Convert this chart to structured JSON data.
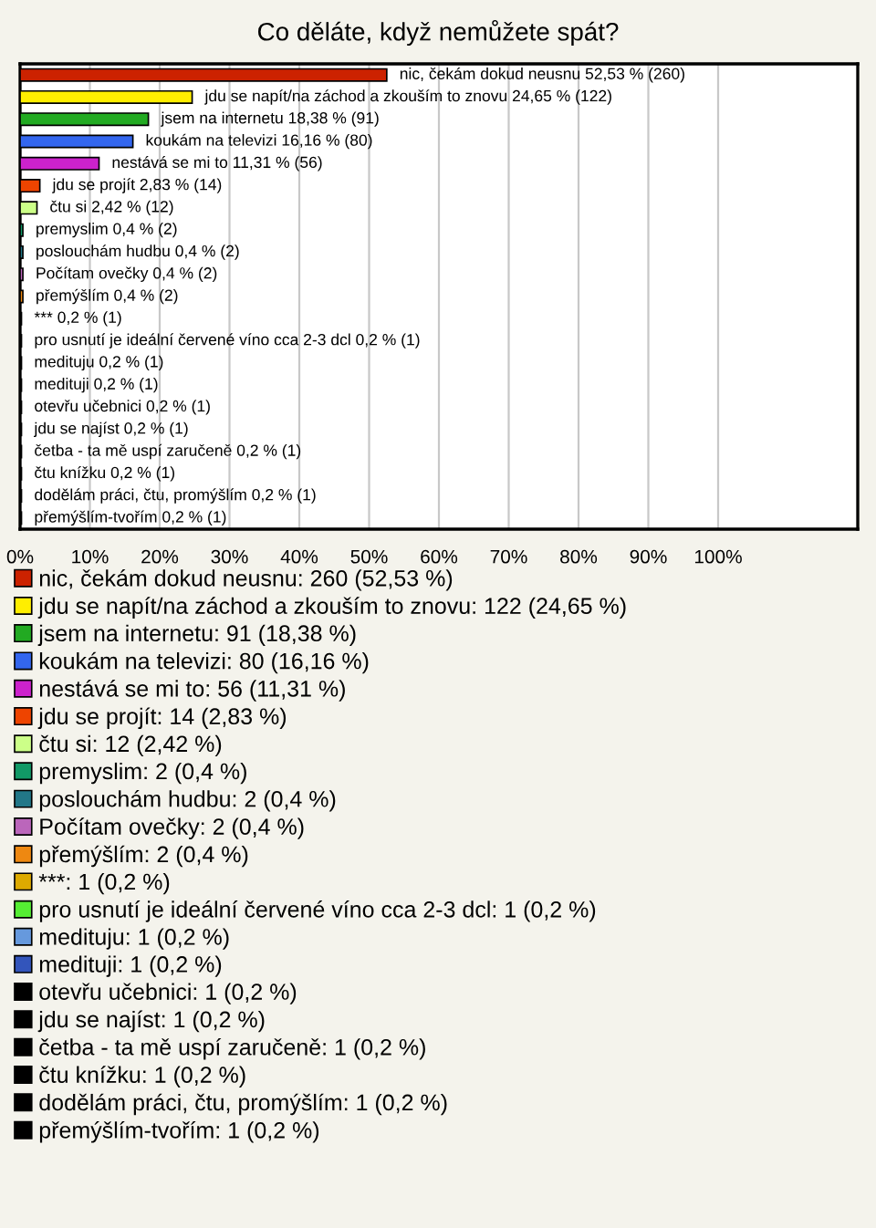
{
  "chart_data": {
    "type": "bar",
    "orientation": "horizontal",
    "title": "Co děláte, když nemůžete spát?",
    "categories": [
      null,
      null,
      null,
      null,
      null,
      null,
      null,
      null,
      null,
      null,
      null,
      null,
      null,
      null,
      null,
      null,
      null,
      null,
      null,
      null,
      null
    ],
    "xlim": [
      0,
      120
    ],
    "xticks": [
      {
        "value": 0,
        "label": "0%"
      },
      {
        "value": 10,
        "label": "10%"
      },
      {
        "value": 20,
        "label": "20%"
      },
      {
        "value": 30,
        "label": "30%"
      },
      {
        "value": 40,
        "label": "40%"
      },
      {
        "value": 50,
        "label": "50%"
      },
      {
        "value": 60,
        "label": "60%"
      },
      {
        "value": 70,
        "label": "70%"
      },
      {
        "value": 80,
        "label": "80%"
      },
      {
        "value": 90,
        "label": "90%"
      },
      {
        "value": 100,
        "label": "100%"
      }
    ],
    "grid": "x",
    "legend": "bottom",
    "series": [
      {
        "name": "nic, čekám dokud neusnu: 260 (52,53 %)",
        "color": "#cc2200",
        "values": [
          52.53,
          null,
          null,
          null,
          null,
          null,
          null,
          null,
          null,
          null,
          null,
          null,
          null,
          null,
          null,
          null,
          null,
          null,
          null,
          null,
          null
        ],
        "value_labels": [
          "nic, čekám dokud neusnu 52,53 % (260)",
          null,
          null,
          null,
          null,
          null,
          null,
          null,
          null,
          null,
          null,
          null,
          null,
          null,
          null,
          null,
          null,
          null,
          null,
          null,
          null
        ]
      },
      {
        "name": "jdu se napít/na záchod a zkouším to znovu: 122 (24,65 %)",
        "color": "#ffee00",
        "values": [
          null,
          24.65,
          null,
          null,
          null,
          null,
          null,
          null,
          null,
          null,
          null,
          null,
          null,
          null,
          null,
          null,
          null,
          null,
          null,
          null,
          null
        ],
        "value_labels": [
          null,
          "jdu se napít/na záchod a zkouším to znovu 24,65 % (122)",
          null,
          null,
          null,
          null,
          null,
          null,
          null,
          null,
          null,
          null,
          null,
          null,
          null,
          null,
          null,
          null,
          null,
          null,
          null
        ]
      },
      {
        "name": "jsem na internetu: 91 (18,38 %)",
        "color": "#22aa22",
        "values": [
          null,
          null,
          18.38,
          null,
          null,
          null,
          null,
          null,
          null,
          null,
          null,
          null,
          null,
          null,
          null,
          null,
          null,
          null,
          null,
          null,
          null
        ],
        "value_labels": [
          null,
          null,
          "jsem na internetu 18,38 % (91)",
          null,
          null,
          null,
          null,
          null,
          null,
          null,
          null,
          null,
          null,
          null,
          null,
          null,
          null,
          null,
          null,
          null,
          null
        ]
      },
      {
        "name": "koukám na televizi: 80 (16,16 %)",
        "color": "#3366ee",
        "values": [
          null,
          null,
          null,
          16.16,
          null,
          null,
          null,
          null,
          null,
          null,
          null,
          null,
          null,
          null,
          null,
          null,
          null,
          null,
          null,
          null,
          null
        ],
        "value_labels": [
          null,
          null,
          null,
          "koukám na televizi 16,16 % (80)",
          null,
          null,
          null,
          null,
          null,
          null,
          null,
          null,
          null,
          null,
          null,
          null,
          null,
          null,
          null,
          null,
          null
        ]
      },
      {
        "name": "nestává se mi to: 56 (11,31 %)",
        "color": "#cc22cc",
        "values": [
          null,
          null,
          null,
          null,
          11.31,
          null,
          null,
          null,
          null,
          null,
          null,
          null,
          null,
          null,
          null,
          null,
          null,
          null,
          null,
          null,
          null
        ],
        "value_labels": [
          null,
          null,
          null,
          null,
          "nestává se mi to 11,31 % (56)",
          null,
          null,
          null,
          null,
          null,
          null,
          null,
          null,
          null,
          null,
          null,
          null,
          null,
          null,
          null,
          null
        ]
      },
      {
        "name": "jdu se projít: 14 (2,83 %)",
        "color": "#ee4400",
        "values": [
          null,
          null,
          null,
          null,
          null,
          2.83,
          null,
          null,
          null,
          null,
          null,
          null,
          null,
          null,
          null,
          null,
          null,
          null,
          null,
          null,
          null
        ],
        "value_labels": [
          null,
          null,
          null,
          null,
          null,
          "jdu se projít 2,83 % (14)",
          null,
          null,
          null,
          null,
          null,
          null,
          null,
          null,
          null,
          null,
          null,
          null,
          null,
          null,
          null
        ]
      },
      {
        "name": "čtu si: 12 (2,42 %)",
        "color": "#ccff88",
        "values": [
          null,
          null,
          null,
          null,
          null,
          null,
          2.42,
          null,
          null,
          null,
          null,
          null,
          null,
          null,
          null,
          null,
          null,
          null,
          null,
          null,
          null
        ],
        "value_labels": [
          null,
          null,
          null,
          null,
          null,
          null,
          "čtu si 2,42 % (12)",
          null,
          null,
          null,
          null,
          null,
          null,
          null,
          null,
          null,
          null,
          null,
          null,
          null,
          null
        ]
      },
      {
        "name": "premyslim: 2 (0,4 %)",
        "color": "#119966",
        "values": [
          null,
          null,
          null,
          null,
          null,
          null,
          null,
          0.4,
          null,
          null,
          null,
          null,
          null,
          null,
          null,
          null,
          null,
          null,
          null,
          null,
          null
        ],
        "value_labels": [
          null,
          null,
          null,
          null,
          null,
          null,
          null,
          "premyslim 0,4 % (2)",
          null,
          null,
          null,
          null,
          null,
          null,
          null,
          null,
          null,
          null,
          null,
          null,
          null
        ]
      },
      {
        "name": "poslouchám hudbu: 2 (0,4 %)",
        "color": "#227788",
        "values": [
          null,
          null,
          null,
          null,
          null,
          null,
          null,
          null,
          0.4,
          null,
          null,
          null,
          null,
          null,
          null,
          null,
          null,
          null,
          null,
          null,
          null
        ],
        "value_labels": [
          null,
          null,
          null,
          null,
          null,
          null,
          null,
          null,
          "poslouchám hudbu 0,4 % (2)",
          null,
          null,
          null,
          null,
          null,
          null,
          null,
          null,
          null,
          null,
          null,
          null
        ]
      },
      {
        "name": "Počítam ovečky: 2 (0,4 %)",
        "color": "#bb66bb",
        "values": [
          null,
          null,
          null,
          null,
          null,
          null,
          null,
          null,
          null,
          0.4,
          null,
          null,
          null,
          null,
          null,
          null,
          null,
          null,
          null,
          null,
          null
        ],
        "value_labels": [
          null,
          null,
          null,
          null,
          null,
          null,
          null,
          null,
          null,
          "Počítam ovečky 0,4 % (2)",
          null,
          null,
          null,
          null,
          null,
          null,
          null,
          null,
          null,
          null,
          null
        ]
      },
      {
        "name": "přemýšlím: 2 (0,4 %)",
        "color": "#ee8811",
        "values": [
          null,
          null,
          null,
          null,
          null,
          null,
          null,
          null,
          null,
          null,
          0.4,
          null,
          null,
          null,
          null,
          null,
          null,
          null,
          null,
          null,
          null
        ],
        "value_labels": [
          null,
          null,
          null,
          null,
          null,
          null,
          null,
          null,
          null,
          null,
          "přemýšlím 0,4 % (2)",
          null,
          null,
          null,
          null,
          null,
          null,
          null,
          null,
          null,
          null
        ]
      },
      {
        "name": "***: 1 (0,2 %)",
        "color": "#ddaa00",
        "values": [
          null,
          null,
          null,
          null,
          null,
          null,
          null,
          null,
          null,
          null,
          null,
          0.2,
          null,
          null,
          null,
          null,
          null,
          null,
          null,
          null,
          null
        ],
        "value_labels": [
          null,
          null,
          null,
          null,
          null,
          null,
          null,
          null,
          null,
          null,
          null,
          "*** 0,2 % (1)",
          null,
          null,
          null,
          null,
          null,
          null,
          null,
          null,
          null
        ]
      },
      {
        "name": "pro usnutí je ideální červené víno cca 2-3 dcl: 1 (0,2 %)",
        "color": "#55ee33",
        "values": [
          null,
          null,
          null,
          null,
          null,
          null,
          null,
          null,
          null,
          null,
          null,
          null,
          0.2,
          null,
          null,
          null,
          null,
          null,
          null,
          null,
          null
        ],
        "value_labels": [
          null,
          null,
          null,
          null,
          null,
          null,
          null,
          null,
          null,
          null,
          null,
          null,
          "pro usnutí je ideální červené víno cca 2-3 dcl 0,2 % (1)",
          null,
          null,
          null,
          null,
          null,
          null,
          null,
          null
        ]
      },
      {
        "name": "medituju: 1 (0,2 %)",
        "color": "#6699dd",
        "values": [
          null,
          null,
          null,
          null,
          null,
          null,
          null,
          null,
          null,
          null,
          null,
          null,
          null,
          0.2,
          null,
          null,
          null,
          null,
          null,
          null,
          null
        ],
        "value_labels": [
          null,
          null,
          null,
          null,
          null,
          null,
          null,
          null,
          null,
          null,
          null,
          null,
          null,
          "medituju 0,2 % (1)",
          null,
          null,
          null,
          null,
          null,
          null,
          null
        ]
      },
      {
        "name": "medituji: 1 (0,2 %)",
        "color": "#3355bb",
        "values": [
          null,
          null,
          null,
          null,
          null,
          null,
          null,
          null,
          null,
          null,
          null,
          null,
          null,
          null,
          0.2,
          null,
          null,
          null,
          null,
          null,
          null
        ],
        "value_labels": [
          null,
          null,
          null,
          null,
          null,
          null,
          null,
          null,
          null,
          null,
          null,
          null,
          null,
          null,
          "medituji 0,2 % (1)",
          null,
          null,
          null,
          null,
          null,
          null
        ]
      },
      {
        "name": "otevřu učebnici: 1 (0,2 %)",
        "color": "#000000",
        "values": [
          null,
          null,
          null,
          null,
          null,
          null,
          null,
          null,
          null,
          null,
          null,
          null,
          null,
          null,
          null,
          0.2,
          null,
          null,
          null,
          null,
          null
        ],
        "value_labels": [
          null,
          null,
          null,
          null,
          null,
          null,
          null,
          null,
          null,
          null,
          null,
          null,
          null,
          null,
          null,
          "otevřu učebnici 0,2 % (1)",
          null,
          null,
          null,
          null,
          null
        ]
      },
      {
        "name": "jdu se najíst: 1 (0,2 %)",
        "color": "#000000",
        "values": [
          null,
          null,
          null,
          null,
          null,
          null,
          null,
          null,
          null,
          null,
          null,
          null,
          null,
          null,
          null,
          null,
          0.2,
          null,
          null,
          null,
          null
        ],
        "value_labels": [
          null,
          null,
          null,
          null,
          null,
          null,
          null,
          null,
          null,
          null,
          null,
          null,
          null,
          null,
          null,
          null,
          "jdu se najíst 0,2 % (1)",
          null,
          null,
          null,
          null
        ]
      },
      {
        "name": "četba - ta mě uspí zaručeně: 1 (0,2 %)",
        "color": "#000000",
        "values": [
          null,
          null,
          null,
          null,
          null,
          null,
          null,
          null,
          null,
          null,
          null,
          null,
          null,
          null,
          null,
          null,
          null,
          0.2,
          null,
          null,
          null
        ],
        "value_labels": [
          null,
          null,
          null,
          null,
          null,
          null,
          null,
          null,
          null,
          null,
          null,
          null,
          null,
          null,
          null,
          null,
          null,
          "četba - ta mě uspí zaručeně 0,2 % (1)",
          null,
          null,
          null
        ]
      },
      {
        "name": "čtu knížku: 1 (0,2 %)",
        "color": "#000000",
        "values": [
          null,
          null,
          null,
          null,
          null,
          null,
          null,
          null,
          null,
          null,
          null,
          null,
          null,
          null,
          null,
          null,
          null,
          null,
          0.2,
          null,
          null
        ],
        "value_labels": [
          null,
          null,
          null,
          null,
          null,
          null,
          null,
          null,
          null,
          null,
          null,
          null,
          null,
          null,
          null,
          null,
          null,
          null,
          "čtu knížku 0,2 % (1)",
          null,
          null
        ]
      },
      {
        "name": "dodělám práci, čtu, promýšlím: 1 (0,2 %)",
        "color": "#000000",
        "values": [
          null,
          null,
          null,
          null,
          null,
          null,
          null,
          null,
          null,
          null,
          null,
          null,
          null,
          null,
          null,
          null,
          null,
          null,
          null,
          0.2,
          null
        ],
        "value_labels": [
          null,
          null,
          null,
          null,
          null,
          null,
          null,
          null,
          null,
          null,
          null,
          null,
          null,
          null,
          null,
          null,
          null,
          null,
          null,
          "dodělám práci, čtu, promýšlím 0,2 % (1)",
          null
        ]
      },
      {
        "name": "přemýšlím-tvořím: 1 (0,2 %)",
        "color": "#000000",
        "values": [
          null,
          null,
          null,
          null,
          null,
          null,
          null,
          null,
          null,
          null,
          null,
          null,
          null,
          null,
          null,
          null,
          null,
          null,
          null,
          null,
          0.2
        ],
        "value_labels": [
          null,
          null,
          null,
          null,
          null,
          null,
          null,
          null,
          null,
          null,
          null,
          null,
          null,
          null,
          null,
          null,
          null,
          null,
          null,
          null,
          "přemýšlím-tvořím 0,2 % (1)"
        ]
      }
    ]
  }
}
